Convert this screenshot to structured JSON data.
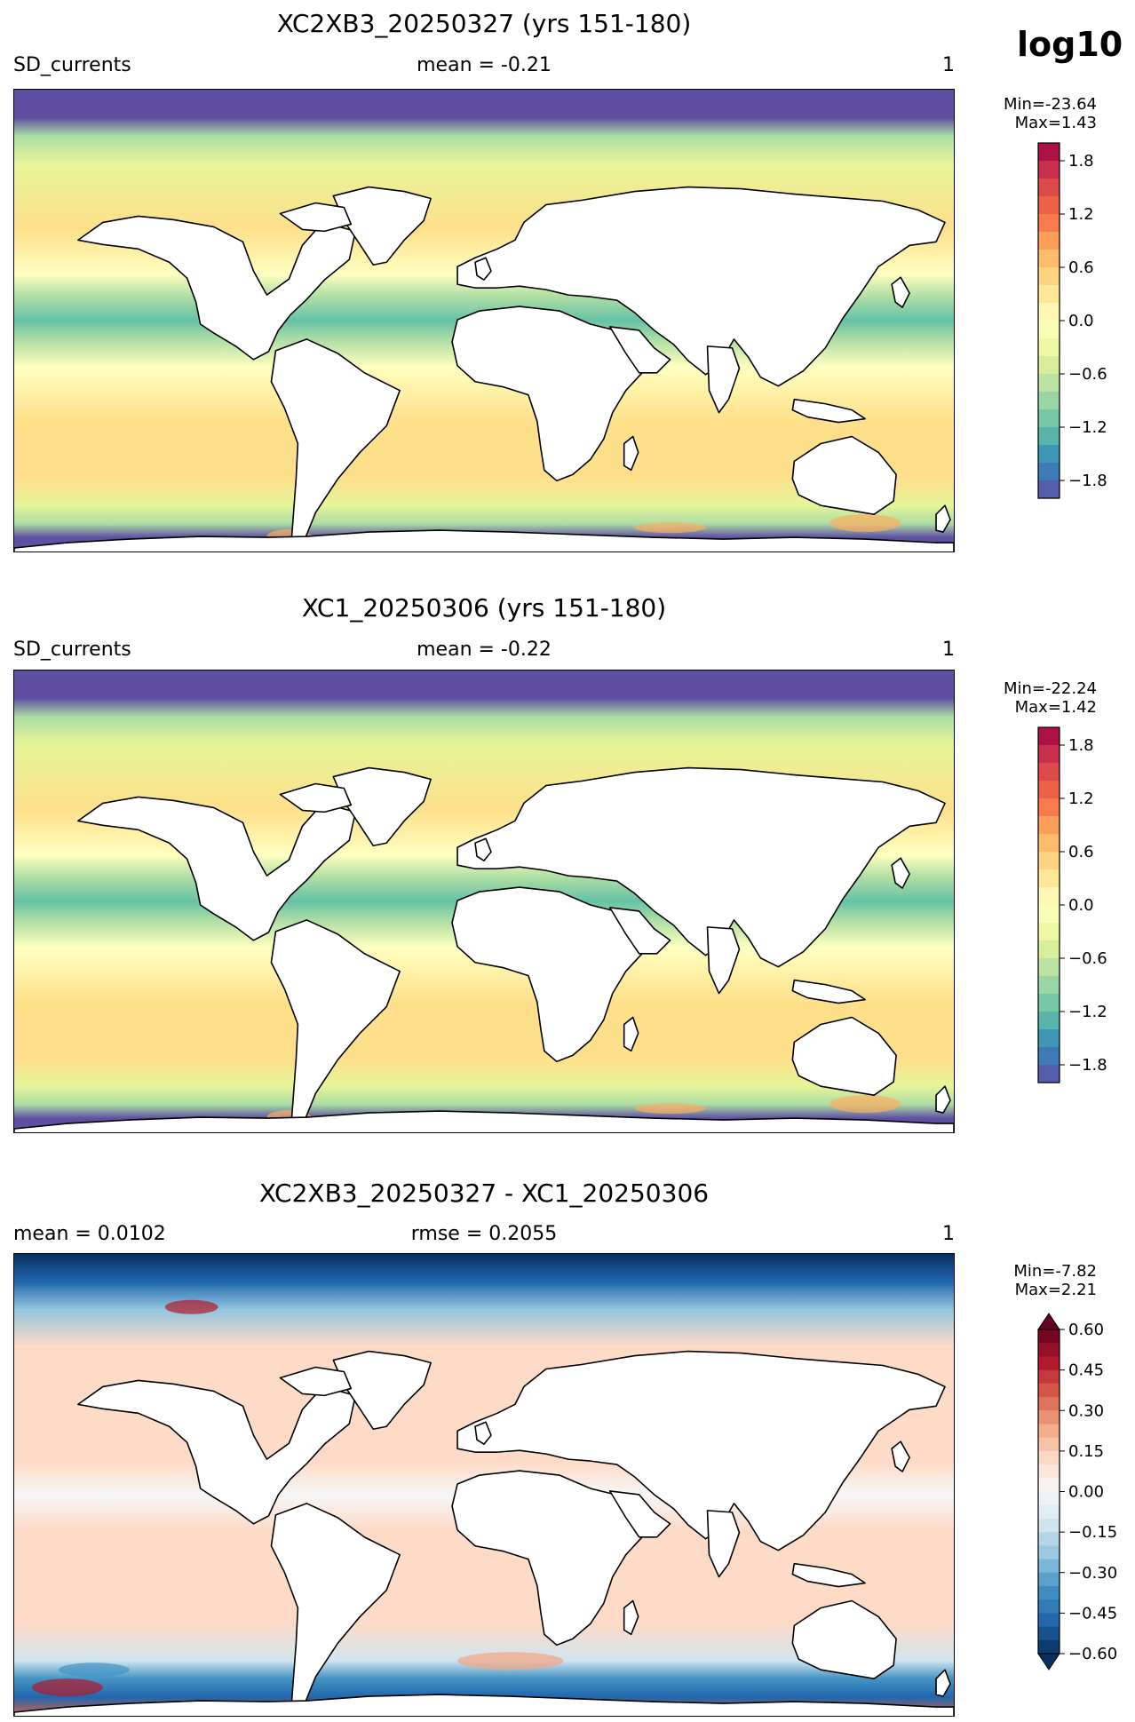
{
  "header": {
    "log_label": "log10"
  },
  "panels": [
    {
      "title": "XC2XB3_20250327 (yrs 151-180)",
      "left_label": "SD_currents",
      "center_label": "mean = -0.21",
      "right_label": "1",
      "min_text": "Min=-23.64",
      "max_text": "Max=1.43",
      "colorbar": {
        "cmap": "Spectral_r",
        "vmin": -2.0,
        "vmax": 2.0,
        "ticks": [
          "1.8",
          "1.2",
          "0.6",
          "0.0",
          "−0.6",
          "−1.2",
          "−1.8"
        ],
        "tick_values": [
          1.8,
          1.2,
          0.6,
          0.0,
          -0.6,
          -1.2,
          -1.8
        ],
        "extend": "none"
      }
    },
    {
      "title": "XC1_20250306 (yrs 151-180)",
      "left_label": "SD_currents",
      "center_label": "mean = -0.22",
      "right_label": "1",
      "min_text": "Min=-22.24",
      "max_text": "Max=1.42",
      "colorbar": {
        "cmap": "Spectral_r",
        "vmin": -2.0,
        "vmax": 2.0,
        "ticks": [
          "1.8",
          "1.2",
          "0.6",
          "0.0",
          "−0.6",
          "−1.2",
          "−1.8"
        ],
        "tick_values": [
          1.8,
          1.2,
          0.6,
          0.0,
          -0.6,
          -1.2,
          -1.8
        ],
        "extend": "none"
      }
    },
    {
      "title": "XC2XB3_20250327 - XC1_20250306",
      "left_label": "mean = 0.0102",
      "center_label": "rmse = 0.2055",
      "right_label": "1",
      "min_text": "Min=-7.82",
      "max_text": "Max=2.21",
      "colorbar": {
        "cmap": "RdBu_r",
        "vmin": -0.6,
        "vmax": 0.6,
        "ticks": [
          "0.60",
          "0.45",
          "0.30",
          "0.15",
          "0.00",
          "−0.15",
          "−0.30",
          "−0.45",
          "−0.60"
        ],
        "tick_values": [
          0.6,
          0.45,
          0.3,
          0.15,
          0.0,
          -0.15,
          -0.3,
          -0.45,
          -0.6
        ],
        "extend": "both"
      }
    }
  ],
  "colors": {
    "spectral": [
      "#5e4fa2",
      "#3288bd",
      "#66c2a5",
      "#abdda4",
      "#e6f598",
      "#ffffbf",
      "#fee08b",
      "#fdae61",
      "#f46d43",
      "#d53e4f",
      "#9e0142"
    ],
    "rdbu": [
      "#053061",
      "#2166ac",
      "#4393c3",
      "#92c5de",
      "#d1e5f0",
      "#f7f7f7",
      "#fddbc7",
      "#f4a582",
      "#d6604d",
      "#b2182b",
      "#67001f"
    ]
  }
}
